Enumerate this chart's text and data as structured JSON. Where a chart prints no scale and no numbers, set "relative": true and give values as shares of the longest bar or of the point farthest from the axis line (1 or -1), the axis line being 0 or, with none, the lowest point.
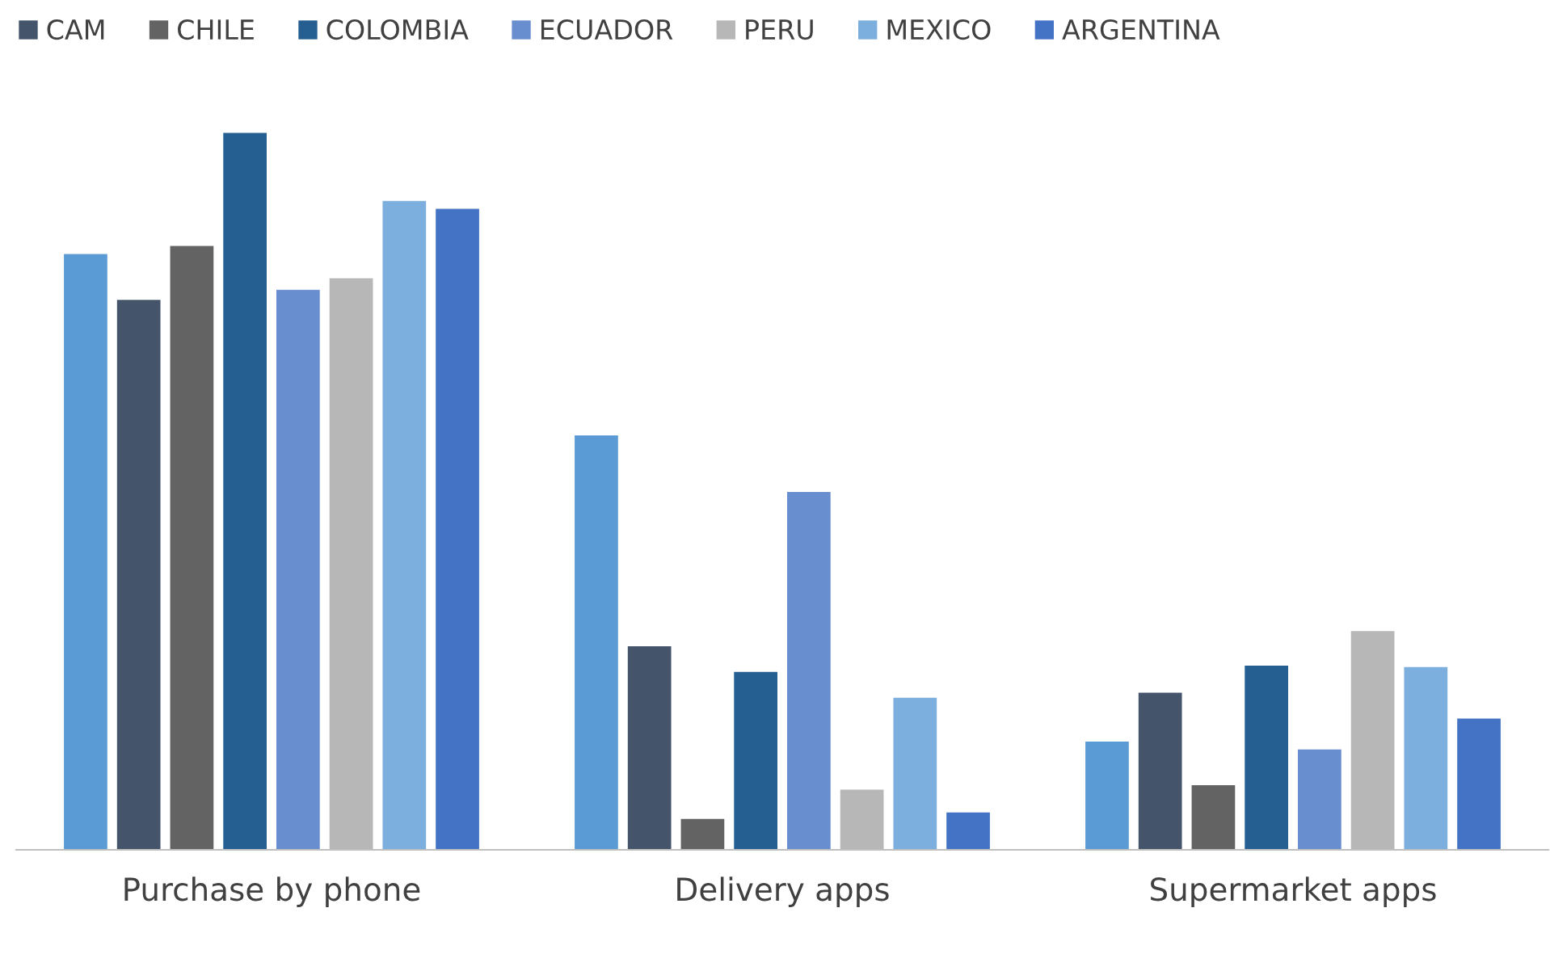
{
  "chart_data": {
    "type": "bar",
    "relative": true,
    "categories": [
      "Purchase by phone",
      "Delivery apps",
      "Supermarket apps"
    ],
    "series": [
      {
        "color": "#5b9bd5",
        "values": [
          0.831,
          0.578,
          0.151
        ]
      },
      {
        "name": "CAM",
        "color": "#44546a",
        "values": [
          0.767,
          0.284,
          0.219
        ]
      },
      {
        "name": "CHILE",
        "color": "#636363",
        "values": [
          0.842,
          0.043,
          0.09
        ]
      },
      {
        "name": "COLOMBIA",
        "color": "#255e91",
        "values": [
          1,
          0.248,
          0.257
        ]
      },
      {
        "name": "ECUADOR",
        "color": "#698ed0",
        "values": [
          0.781,
          0.499,
          0.14
        ]
      },
      {
        "name": "PERU",
        "color": "#b7b7b7",
        "values": [
          0.797,
          0.084,
          0.305
        ]
      },
      {
        "name": "MEXICO",
        "color": "#7cafdd",
        "values": [
          0.905,
          0.212,
          0.255
        ]
      },
      {
        "name": "ARGENTINA",
        "color": "#4472c4",
        "values": [
          0.894,
          0.052,
          0.183
        ]
      }
    ],
    "legend": "top",
    "grid": false
  }
}
